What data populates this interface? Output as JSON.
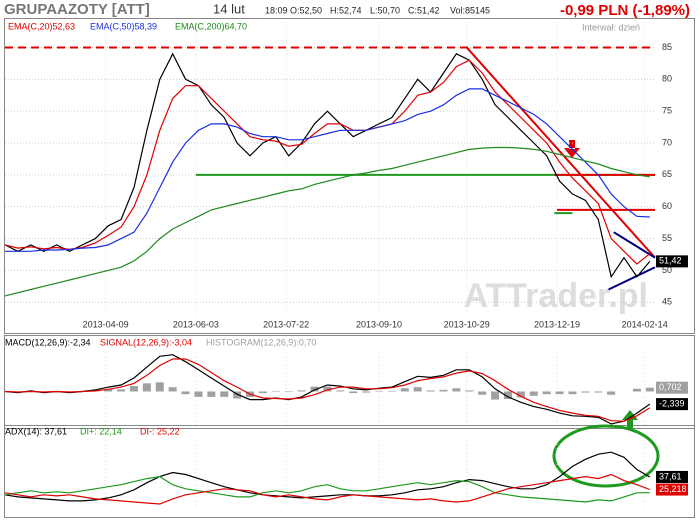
{
  "header": {
    "title": "GRUPAAZOTY [ATT]",
    "date": "14 lut",
    "time": "18:09",
    "open": "O:52,50",
    "high": "H:52,74",
    "low": "L:50,70",
    "close": "C:51,42",
    "volume": "Vol:85145",
    "change": "-0,99 PLN (-1,89%)",
    "interval": "Interwał: dzień",
    "watermark": "ATTrader.pl"
  },
  "chart_data": [
    {
      "type": "line",
      "xlim": [
        0,
        252
      ],
      "ylim": [
        43,
        89
      ],
      "yticks": [
        45,
        50,
        55,
        60,
        65,
        70,
        75,
        80,
        85
      ],
      "grid": true,
      "xticks": [
        {
          "value": 39,
          "label": "2013-04-09"
        },
        {
          "value": 74,
          "label": "2013-06-03"
        },
        {
          "value": 109,
          "label": "2013-07-22"
        },
        {
          "value": 145,
          "label": "2013-09-10"
        },
        {
          "value": 179,
          "label": "2013-10-29"
        },
        {
          "value": 214,
          "label": "2013-12-19"
        },
        {
          "value": 248,
          "label": "2014-02-14"
        }
      ],
      "x": [
        0,
        5,
        10,
        15,
        20,
        25,
        30,
        35,
        40,
        45,
        50,
        55,
        60,
        65,
        70,
        75,
        80,
        85,
        90,
        95,
        100,
        105,
        110,
        115,
        120,
        125,
        130,
        135,
        140,
        145,
        150,
        155,
        160,
        165,
        170,
        175,
        180,
        185,
        190,
        195,
        200,
        205,
        210,
        215,
        220,
        225,
        230,
        235,
        240,
        245,
        250
      ],
      "series": [
        {
          "name": "C",
          "color": "#000000",
          "legend": false,
          "values": [
            54,
            53,
            54,
            53,
            54,
            53,
            54,
            55,
            57,
            58,
            63,
            72,
            80,
            84,
            80,
            79,
            76,
            74,
            70,
            68,
            70,
            71,
            68,
            70,
            73,
            75,
            73,
            71,
            72,
            73,
            74,
            77,
            80,
            78,
            81,
            84,
            83,
            80,
            76,
            74,
            72,
            70,
            68,
            64,
            62,
            61,
            58,
            49,
            52,
            49,
            51.42
          ]
        },
        {
          "name": "EMA(C,20)52,63",
          "color": "#e00000",
          "values": [
            54,
            53.5,
            53.7,
            53.4,
            53.6,
            53.3,
            53.6,
            54.3,
            55.5,
            56.8,
            60,
            65,
            72,
            77,
            79,
            79,
            77,
            75,
            73,
            71,
            70.5,
            70.3,
            69.5,
            69.8,
            71.5,
            73,
            73,
            72,
            72,
            72.5,
            73,
            75,
            77.5,
            78,
            79.5,
            82,
            83,
            81,
            78,
            76,
            74,
            72,
            70,
            67,
            64.5,
            62.5,
            60.5,
            55,
            53,
            51,
            52.63
          ]
        },
        {
          "name": "EMA(C,50)58,39",
          "color": "#1a2fe0",
          "values": [
            53,
            53,
            53,
            53.2,
            53.2,
            53.3,
            53.5,
            53.6,
            54,
            55,
            56,
            59,
            63,
            67,
            70,
            72,
            73,
            73,
            72.5,
            71.5,
            71,
            71,
            70.5,
            70.5,
            71,
            71.5,
            72,
            72,
            72,
            72.5,
            73,
            73.5,
            74.5,
            75,
            76,
            77.5,
            78.5,
            78.5,
            77.5,
            76.5,
            75.5,
            74.5,
            73,
            71,
            69,
            67,
            65,
            62,
            60,
            58.5,
            58.39
          ]
        },
        {
          "name": "EMA(C,200)64,70",
          "color": "#1e8a1e",
          "values": [
            46,
            46.5,
            47,
            47.5,
            48,
            48.5,
            49,
            49.5,
            50,
            50.5,
            51.5,
            53,
            55,
            56.5,
            57.5,
            58.5,
            59.5,
            60,
            60.5,
            61,
            61.5,
            62,
            62.5,
            62.8,
            63.5,
            64,
            64.5,
            65,
            65.3,
            65.7,
            66,
            66.5,
            67,
            67.5,
            68,
            68.5,
            69,
            69.2,
            69.3,
            69.3,
            69.2,
            69,
            68.7,
            68.2,
            67.7,
            67.2,
            66.7,
            66,
            65.5,
            65,
            64.7
          ]
        }
      ],
      "lines": [
        {
          "x": [
            0,
            252
          ],
          "y": [
            85,
            85
          ],
          "color": "#e00000",
          "dash": true
        },
        {
          "x": [
            74,
            252
          ],
          "y": [
            65,
            65
          ],
          "color": "#1e9a1e"
        },
        {
          "x": [
            213,
            252
          ],
          "y": [
            65,
            65
          ],
          "color": "#e00000"
        },
        {
          "x": [
            214,
            252
          ],
          "y": [
            59.5,
            59.5
          ],
          "color": "#e00000"
        },
        {
          "x": [
            213,
            220
          ],
          "y": [
            59,
            59
          ],
          "color": "#1e9a1e"
        },
        {
          "x": [
            179,
            252
          ],
          "y": [
            85,
            52
          ],
          "color": "#e00000"
        },
        {
          "x": [
            236,
            252
          ],
          "y": [
            56,
            52
          ],
          "color": "#000080"
        },
        {
          "x": [
            234,
            252
          ],
          "y": [
            47,
            50.5
          ],
          "color": "#000080"
        }
      ],
      "markers": [
        {
          "value": 51.42,
          "label": "51,42",
          "color": "#000000"
        }
      ]
    },
    {
      "type": "line",
      "xlim": [
        0,
        252
      ],
      "ylim": [
        -6.2,
        7.3
      ],
      "x": [
        0,
        5,
        10,
        15,
        20,
        25,
        30,
        35,
        40,
        45,
        50,
        55,
        60,
        65,
        70,
        75,
        80,
        85,
        90,
        95,
        100,
        105,
        110,
        115,
        120,
        125,
        130,
        135,
        140,
        145,
        150,
        155,
        160,
        165,
        170,
        175,
        180,
        185,
        190,
        195,
        200,
        205,
        210,
        215,
        220,
        225,
        230,
        235,
        240,
        245,
        250
      ],
      "series": [
        {
          "name": "MACD(12,26,9):-2,34",
          "color": "#000000",
          "values": [
            0,
            -0.2,
            0.1,
            -0.2,
            0,
            -0.2,
            0,
            0.3,
            0.8,
            1.2,
            2.5,
            4.5,
            6.5,
            6.8,
            5.5,
            4,
            2.5,
            1,
            -0.5,
            -1.5,
            -1.5,
            -1.2,
            -1.5,
            -1,
            0.3,
            1.2,
            1,
            0.5,
            0.3,
            0.6,
            0.8,
            1.8,
            2.8,
            2.6,
            3,
            4,
            4,
            2.7,
            0.5,
            -1,
            -2,
            -2.8,
            -3.3,
            -4,
            -4.5,
            -4.6,
            -4.8,
            -6,
            -5.5,
            -4,
            -2.34
          ]
        },
        {
          "name": "SIGNAL(12,26,9):-3,04",
          "color": "#e00000",
          "values": [
            0,
            -0.1,
            0,
            -0.1,
            0,
            -0.1,
            0,
            0.1,
            0.4,
            0.8,
            1.5,
            3,
            4.8,
            6,
            6,
            5,
            3.5,
            2,
            0.8,
            -0.5,
            -1.2,
            -1.3,
            -1.4,
            -1.2,
            -0.6,
            0.3,
            0.8,
            0.8,
            0.5,
            0.5,
            0.7,
            1.2,
            2,
            2.4,
            2.7,
            3.4,
            3.8,
            3.3,
            2,
            0.4,
            -0.9,
            -2,
            -2.8,
            -3.5,
            -4,
            -4.4,
            -4.6,
            -5.4,
            -5.5,
            -4.5,
            -3.04
          ]
        },
        {
          "name": "HISTOGRAM(12,26,9):0,70",
          "color": "#a0a0a0",
          "type": "bar",
          "values": [
            0,
            -0.1,
            0.1,
            -0.1,
            0,
            -0.1,
            0,
            0.2,
            0.4,
            0.4,
            1,
            1.5,
            1.7,
            0.8,
            -0.5,
            -1,
            -1,
            -1,
            -1.3,
            -1,
            -0.3,
            0.1,
            -0.1,
            0.2,
            0.9,
            0.9,
            0.2,
            -0.3,
            -0.2,
            0.1,
            0.1,
            0.6,
            0.8,
            0.2,
            0.3,
            0.6,
            0.2,
            -0.6,
            -1.5,
            -1.4,
            -1.1,
            -0.8,
            -0.5,
            -0.5,
            -0.5,
            -0.2,
            -0.2,
            -0.6,
            0,
            0.5,
            0.7
          ]
        }
      ],
      "markers": [
        {
          "value": 0.702,
          "label": "0,702",
          "color": "#a0a0a0"
        },
        {
          "value": -2.339,
          "label": "-2,339",
          "color": "#000000"
        }
      ]
    },
    {
      "type": "line",
      "xlim": [
        0,
        252
      ],
      "ylim": [
        10,
        74
      ],
      "x": [
        0,
        5,
        10,
        15,
        20,
        25,
        30,
        35,
        40,
        45,
        50,
        55,
        60,
        65,
        70,
        75,
        80,
        85,
        90,
        95,
        100,
        105,
        110,
        115,
        120,
        125,
        130,
        135,
        140,
        145,
        150,
        155,
        160,
        165,
        170,
        175,
        180,
        185,
        190,
        195,
        200,
        205,
        210,
        215,
        220,
        225,
        230,
        235,
        240,
        245,
        250
      ],
      "series": [
        {
          "name": "ADX(14): 37,61",
          "color": "#000000",
          "values": [
            20,
            18,
            17,
            16,
            15,
            14,
            14,
            15,
            17,
            20,
            25,
            32,
            38,
            42,
            40,
            36,
            32,
            28,
            25,
            22,
            20,
            19,
            18,
            17,
            18,
            19,
            20,
            20,
            19,
            19,
            20,
            22,
            25,
            26,
            28,
            32,
            35,
            34,
            31,
            28,
            26,
            26,
            30,
            38,
            48,
            55,
            60,
            62,
            57,
            45,
            37.61
          ]
        },
        {
          "name": "DI+: 22,14",
          "color": "#1e9a1e",
          "values": [
            20,
            22,
            24,
            22,
            23,
            22,
            24,
            26,
            28,
            30,
            33,
            36,
            38,
            30,
            26,
            24,
            22,
            20,
            18,
            18,
            22,
            24,
            22,
            24,
            28,
            30,
            26,
            24,
            24,
            26,
            28,
            30,
            32,
            30,
            32,
            34,
            33,
            28,
            22,
            20,
            18,
            17,
            16,
            15,
            14,
            13,
            15,
            14,
            18,
            22,
            22.14
          ]
        },
        {
          "name": "DI-: 25,22",
          "color": "#e00000",
          "values": [
            22,
            20,
            18,
            20,
            19,
            20,
            18,
            16,
            15,
            14,
            13,
            12,
            11,
            16,
            20,
            22,
            24,
            26,
            25,
            24,
            20,
            18,
            20,
            18,
            16,
            15,
            18,
            20,
            19,
            18,
            17,
            16,
            15,
            16,
            14,
            13,
            14,
            18,
            22,
            26,
            28,
            30,
            32,
            34,
            36,
            38,
            36,
            40,
            34,
            30,
            25.22
          ]
        }
      ],
      "markers": [
        {
          "value": 37.61,
          "label": "37,61",
          "color": "#000000"
        },
        {
          "value": 25.218,
          "label": "25,218",
          "color": "#e00000"
        }
      ]
    }
  ]
}
